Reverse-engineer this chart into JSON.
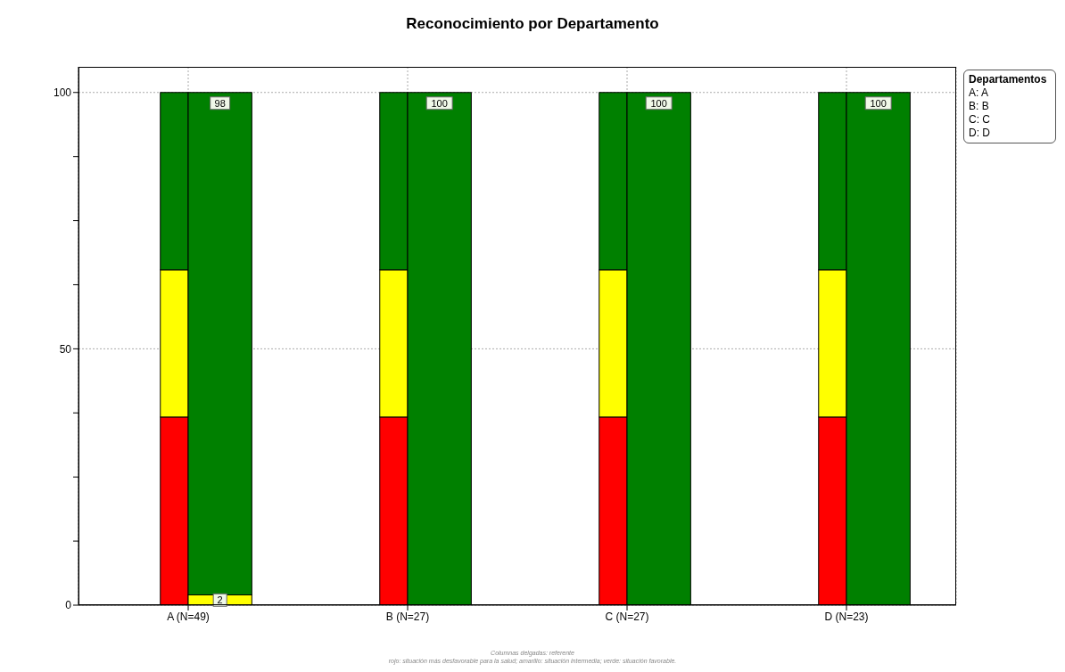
{
  "chart_data": {
    "type": "bar",
    "title": "Reconocimiento por Departamento",
    "categories": [
      "A (N=49)",
      "B (N=27)",
      "C (N=27)",
      "D (N=23)"
    ],
    "series": [
      {
        "color": "#ff0000",
        "base": [
          0,
          0,
          0,
          0
        ],
        "values": [
          36.7,
          36.7,
          36.7,
          36.7
        ]
      },
      {
        "color": "#ffff00",
        "base": [
          36.7,
          36.7,
          36.7,
          36.7
        ],
        "values": [
          28.7,
          28.7,
          28.7,
          28.7
        ]
      },
      {
        "color": "#008000",
        "base": [
          65.4,
          65.4,
          65.4,
          65.4
        ],
        "values": [
          34.6,
          34.6,
          34.6,
          34.6
        ]
      },
      {
        "color": "#ffff00",
        "base": [
          0,
          null,
          null,
          null
        ],
        "values": [
          2,
          null,
          null,
          null
        ],
        "value_labels": [
          "2",
          null,
          null,
          null
        ]
      },
      {
        "color": "#008000",
        "base": [
          2,
          0,
          0,
          0
        ],
        "values": [
          98,
          100,
          100,
          100
        ],
        "value_labels": [
          "98",
          "100",
          "100",
          "100"
        ]
      }
    ],
    "ylim": [
      0,
      105
    ],
    "yticks": [
      0,
      {
        "value": 12.5,
        "label": null
      },
      {
        "value": 25,
        "label": null
      },
      {
        "value": 37.5,
        "label": null
      },
      50,
      {
        "value": 62.5,
        "label": null
      },
      {
        "value": 75,
        "label": null
      },
      {
        "value": 87.5,
        "label": null
      },
      100
    ],
    "grid": true,
    "legend_title": "Departamentos",
    "annotations": [
      "A: A",
      "B: B",
      "C: C",
      "D: D",
      "Columnas delgadas: referente",
      "rojo: situación más desfavorable para la salud; amarillo: situación intermedia; verde: situación favorable."
    ]
  }
}
